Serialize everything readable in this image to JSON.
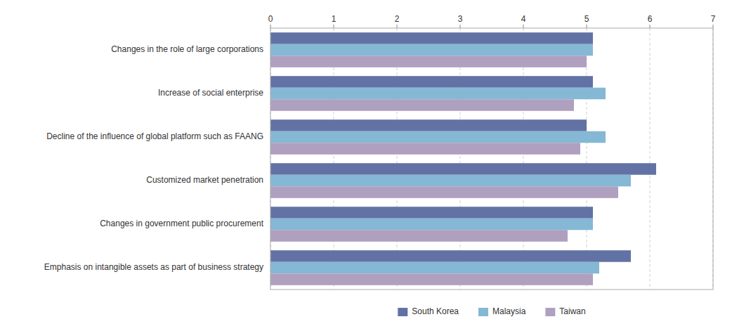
{
  "chart_data": {
    "type": "bar",
    "orientation": "horizontal",
    "categories": [
      "Changes in the role of large corporations",
      "Increase of social enterprise",
      "Decline of the influence of global platform such as FAANG",
      "Customized market penetration",
      "Changes in government public procurement",
      "Emphasis on intangible assets as part of business strategy"
    ],
    "series": [
      {
        "name": "South Korea",
        "color": "#6272a4",
        "values": [
          5.1,
          5.1,
          5.0,
          6.1,
          5.1,
          5.7
        ]
      },
      {
        "name": "Malaysia",
        "color": "#85b8d4",
        "values": [
          5.1,
          5.3,
          5.3,
          5.7,
          5.1,
          5.2
        ]
      },
      {
        "name": "Taiwan",
        "color": "#b0a0c0",
        "values": [
          5.0,
          4.8,
          4.9,
          5.5,
          4.7,
          5.1
        ]
      }
    ],
    "xlim": [
      0,
      7
    ],
    "xticks": [
      0,
      1,
      2,
      3,
      4,
      5,
      6,
      7
    ],
    "grid": true,
    "legend": "bottom"
  }
}
